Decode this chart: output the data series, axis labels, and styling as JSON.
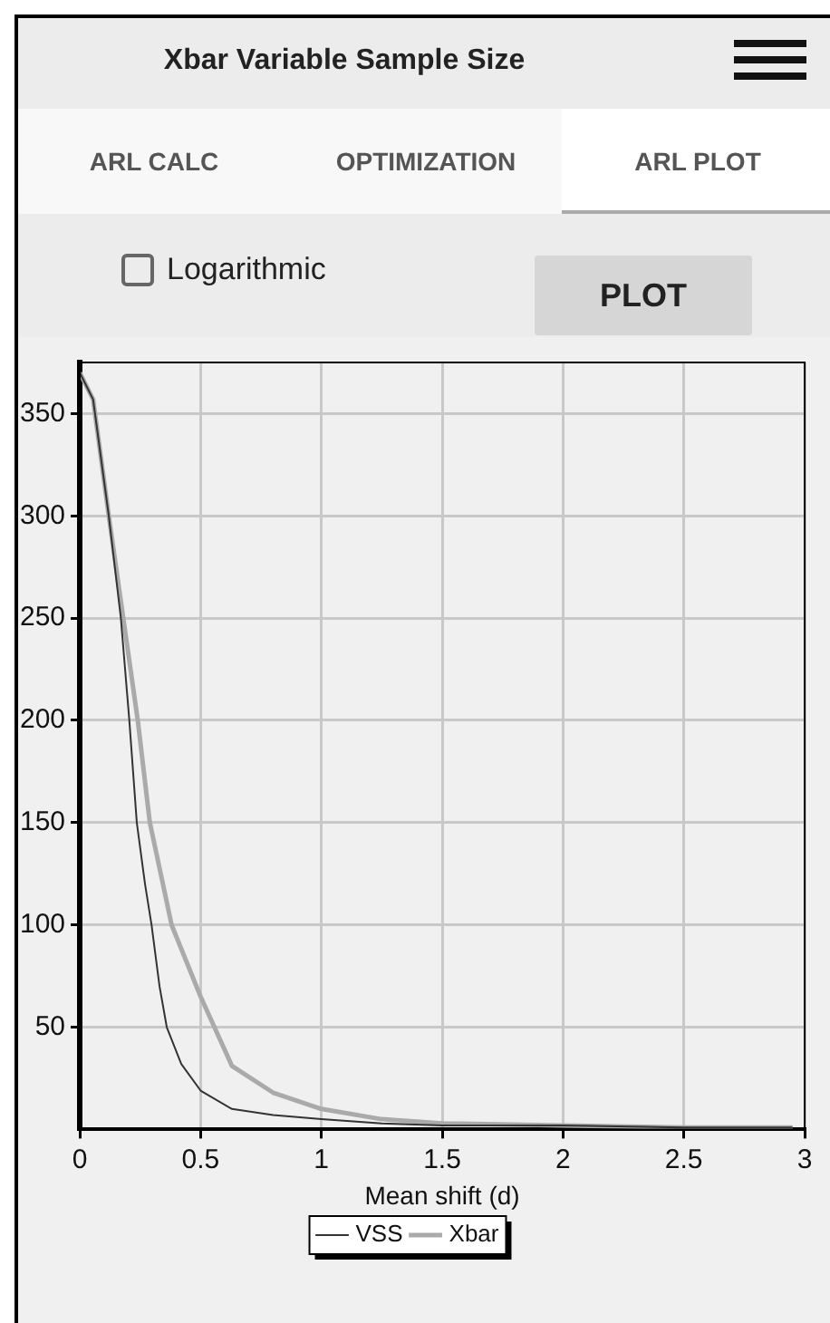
{
  "chart_data": {
    "type": "line",
    "title": "Xbar Variable Sample Size",
    "annotations": [
      "ARL CALC",
      "OPTIMIZATION",
      "ARL PLOT",
      "Logarithmic",
      "PLOT"
    ],
    "xlabel": "Mean shift (d)",
    "series": [
      {
        "name": "VSS",
        "color": "#333333",
        "x": [
          0,
          0.055,
          0.12,
          0.17,
          0.205,
          0.236,
          0.27,
          0.297,
          0.33,
          0.36,
          0.42,
          0.5,
          0.63,
          0.8,
          1.0,
          1.25,
          1.5,
          2.0,
          2.5,
          2.95
        ],
        "values": [
          370,
          357,
          300,
          250,
          200,
          150,
          120,
          100,
          70,
          50,
          32,
          19,
          10,
          7,
          5,
          3,
          2,
          2,
          1,
          1
        ]
      },
      {
        "name": "Xbar",
        "color": "#aaaaaa",
        "x": [
          0,
          0.055,
          0.12,
          0.18,
          0.24,
          0.29,
          0.38,
          0.5,
          0.63,
          0.8,
          1.0,
          1.25,
          1.5,
          2.0,
          2.5,
          2.95
        ],
        "values": [
          370,
          357,
          300,
          250,
          200,
          150,
          100,
          65,
          31,
          18,
          10,
          5,
          3,
          2,
          1,
          1
        ]
      }
    ],
    "xlim": [
      0,
      3
    ],
    "xticks": [
      0,
      0.5,
      1,
      1.5,
      2,
      2.5,
      3
    ],
    "ylim": [
      0,
      375
    ],
    "yticks": [
      50,
      100,
      150,
      200,
      250,
      300,
      350
    ],
    "grid": true,
    "legend": "bottom",
    "marker": "none",
    "line_style": "solid"
  }
}
